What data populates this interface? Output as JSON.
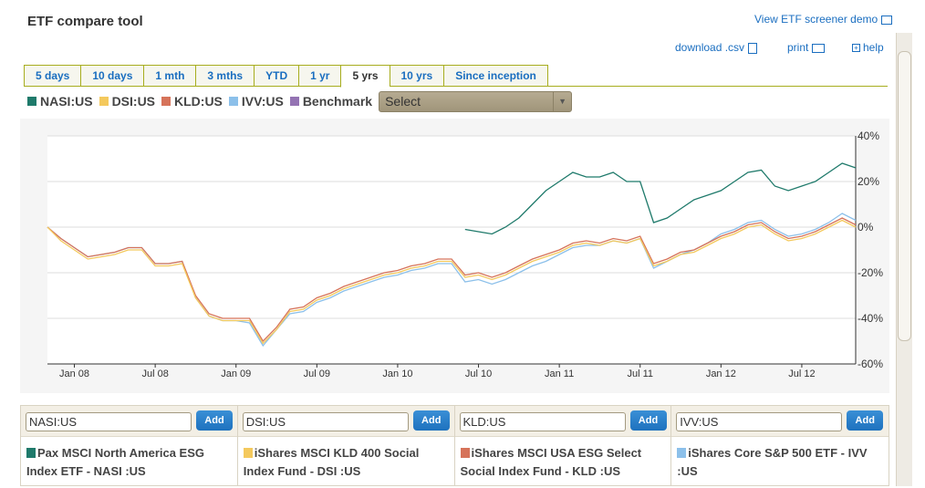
{
  "header": {
    "title": "ETF compare tool",
    "screener_link": "View ETF screener demo",
    "download": "download .csv",
    "print": "print",
    "help": "help"
  },
  "tabs": [
    {
      "label": "5 days"
    },
    {
      "label": "10 days"
    },
    {
      "label": "1 mth"
    },
    {
      "label": "3 mths"
    },
    {
      "label": "YTD"
    },
    {
      "label": "1 yr"
    },
    {
      "label": "5 yrs",
      "active": true
    },
    {
      "label": "10 yrs"
    },
    {
      "label": "Since inception"
    }
  ],
  "legend": {
    "items": [
      {
        "label": "NASI:US",
        "color": "#1f7a6b"
      },
      {
        "label": "DSI:US",
        "color": "#f4c95d"
      },
      {
        "label": "KLD:US",
        "color": "#d6735a"
      },
      {
        "label": "IVV:US",
        "color": "#8cc0ea"
      },
      {
        "label": "Benchmark",
        "color": "#9473b3"
      }
    ],
    "benchmark_select": "Select"
  },
  "chart_data": {
    "type": "line",
    "grid": true,
    "y_axis_position": "right",
    "ylim": [
      -60,
      40
    ],
    "yticks": [
      "40%",
      "20%",
      "0%",
      "-20%",
      "-40%",
      "-60%"
    ],
    "ytick_values": [
      40,
      20,
      0,
      -20,
      -40,
      -60
    ],
    "xticks": [
      "Jan 08",
      "Jul 08",
      "Jan 09",
      "Jul 09",
      "Jan 10",
      "Jul 10",
      "Jan 11",
      "Jul 11",
      "Jan 12",
      "Jul 12"
    ],
    "xtick_months": [
      "2008-01",
      "2008-07",
      "2009-01",
      "2009-07",
      "2010-01",
      "2010-07",
      "2011-01",
      "2011-07",
      "2012-01",
      "2012-07"
    ],
    "x_start": "2007-11",
    "x_end": "2012-11",
    "series": [
      {
        "name": "NASI:US",
        "color": "#1f7a6b",
        "start": "2010-06",
        "values": [
          -1,
          -2,
          -3,
          0,
          4,
          10,
          16,
          20,
          24,
          22,
          22,
          24,
          20,
          20,
          2,
          4,
          8,
          12,
          14,
          16,
          20,
          24,
          25,
          18,
          16,
          18,
          20,
          24,
          28,
          26
        ]
      },
      {
        "name": "DSI:US",
        "color": "#f4c95d",
        "start": "2007-11",
        "values": [
          0,
          -6,
          -10,
          -14,
          -13,
          -12,
          -10,
          -10,
          -17,
          -17,
          -16,
          -31,
          -39,
          -41,
          -41,
          -41,
          -51,
          -45,
          -37,
          -36,
          -32,
          -30,
          -27,
          -25,
          -23,
          -21,
          -20,
          -18,
          -17,
          -15,
          -15,
          -22,
          -21,
          -23,
          -21,
          -18,
          -15,
          -13,
          -11,
          -8,
          -7,
          -8,
          -6,
          -7,
          -5,
          -17,
          -15,
          -12,
          -11,
          -8,
          -5,
          -3,
          0,
          1,
          -3,
          -6,
          -5,
          -3,
          0,
          3,
          0
        ]
      },
      {
        "name": "KLD:US",
        "color": "#d6735a",
        "start": "2007-11",
        "values": [
          0,
          -5,
          -9,
          -13,
          -12,
          -11,
          -9,
          -9,
          -16,
          -16,
          -15,
          -30,
          -38,
          -40,
          -40,
          -40,
          -50,
          -44,
          -36,
          -35,
          -31,
          -29,
          -26,
          -24,
          -22,
          -20,
          -19,
          -17,
          -16,
          -14,
          -14,
          -21,
          -20,
          -22,
          -20,
          -17,
          -14,
          -12,
          -10,
          -7,
          -6,
          -7,
          -5,
          -6,
          -4,
          -16,
          -14,
          -11,
          -10,
          -7,
          -4,
          -2,
          1,
          2,
          -2,
          -5,
          -4,
          -2,
          1,
          4,
          1
        ]
      },
      {
        "name": "IVV:US",
        "color": "#8cc0ea",
        "start": "2007-11",
        "values": [
          0,
          -5,
          -9,
          -13,
          -12,
          -11,
          -9,
          -9,
          -16,
          -16,
          -15,
          -31,
          -39,
          -41,
          -41,
          -42,
          -52,
          -45,
          -38,
          -37,
          -33,
          -31,
          -28,
          -26,
          -24,
          -22,
          -21,
          -19,
          -18,
          -16,
          -16,
          -24,
          -23,
          -25,
          -23,
          -20,
          -17,
          -15,
          -12,
          -9,
          -8,
          -8,
          -6,
          -7,
          -5,
          -18,
          -15,
          -12,
          -10,
          -7,
          -3,
          -1,
          2,
          3,
          -1,
          -4,
          -3,
          -1,
          2,
          6,
          3
        ]
      }
    ]
  },
  "compare": [
    {
      "ticker": "NASI:US",
      "add": "Add",
      "name": "Pax MSCI North America ESG Index ETF - NASI :US",
      "color": "#1f7a6b"
    },
    {
      "ticker": "DSI:US",
      "add": "Add",
      "name": "iShares MSCI KLD 400 Social Index Fund - DSI :US",
      "color": "#f4c95d"
    },
    {
      "ticker": "KLD:US",
      "add": "Add",
      "name": "iShares MSCI USA ESG Select Social Index Fund - KLD :US",
      "color": "#d6735a"
    },
    {
      "ticker": "IVV:US",
      "add": "Add",
      "name": "iShares Core S&P 500 ETF - IVV :US",
      "color": "#8cc0ea"
    }
  ]
}
